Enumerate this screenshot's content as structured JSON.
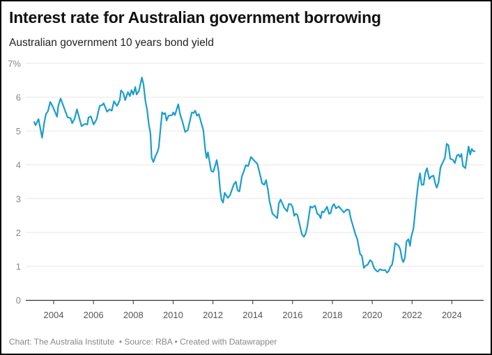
{
  "title": "Interest rate for Australian government borrowing",
  "subtitle": "Australian government 10 years bond yield",
  "footer": {
    "credit": "Chart: The Australia Institute",
    "source": "Source: RBA",
    "tool": "Created with Datawrapper",
    "separator": "•"
  },
  "colors": {
    "line": "#1a9dcc",
    "grid": "#e6e6e6",
    "axis": "#333333"
  },
  "chart_data": {
    "type": "line",
    "title": "Interest rate for Australian government borrowing",
    "subtitle": "Australian government 10 years bond yield",
    "xlabel": "",
    "ylabel": "",
    "xlim": [
      2003.0,
      2025.2
    ],
    "ylim": [
      0,
      7
    ],
    "y_ticks": [
      0,
      1,
      2,
      3,
      4,
      5,
      6,
      7
    ],
    "y_tick_labels": [
      "0",
      "1",
      "2",
      "3",
      "4",
      "5",
      "6",
      "7%"
    ],
    "x_ticks": [
      2004,
      2006,
      2008,
      2010,
      2012,
      2014,
      2016,
      2018,
      2020,
      2022,
      2024
    ],
    "x_tick_labels": [
      "2004",
      "2006",
      "2008",
      "2010",
      "2012",
      "2014",
      "2016",
      "2018",
      "2020",
      "2022",
      "2024"
    ],
    "grid": "horizontal",
    "series": [
      {
        "x": [
          2003.01,
          2003.09,
          2003.24,
          2003.42,
          2003.53,
          2003.62,
          2003.71,
          2003.83,
          2003.94,
          2004.17,
          2004.23,
          2004.35,
          2004.7,
          2004.85,
          2004.93,
          2005.05,
          2005.17,
          2005.4,
          2005.57,
          2005.69,
          2005.75,
          2005.87,
          2006.01,
          2006.16,
          2006.31,
          2006.45,
          2006.51,
          2006.68,
          2006.8,
          2006.92,
          2007.03,
          2007.18,
          2007.32,
          2007.38,
          2007.5,
          2007.59,
          2007.73,
          2007.83,
          2007.91,
          2008.0,
          2008.1,
          2008.17,
          2008.28,
          2008.43,
          2008.51,
          2008.61,
          2008.69,
          2008.78,
          2008.86,
          2008.92,
          2009.01,
          2009.11,
          2009.21,
          2009.28,
          2009.36,
          2009.45,
          2009.52,
          2009.6,
          2009.67,
          2009.77,
          2009.95,
          2010.01,
          2010.09,
          2010.26,
          2010.36,
          2010.44,
          2010.61,
          2010.74,
          2010.88,
          2010.94,
          2011.03,
          2011.11,
          2011.2,
          2011.29,
          2011.52,
          2011.61,
          2011.68,
          2011.75,
          2011.91,
          2012.02,
          2012.19,
          2012.28,
          2012.36,
          2012.43,
          2012.51,
          2012.59,
          2012.75,
          2012.86,
          2013.04,
          2013.15,
          2013.24,
          2013.33,
          2013.45,
          2013.54,
          2013.65,
          2013.77,
          2013.91,
          2014.06,
          2014.23,
          2014.35,
          2014.47,
          2014.58,
          2014.67,
          2014.76,
          2014.84,
          2014.99,
          2015.11,
          2015.23,
          2015.31,
          2015.4,
          2015.58,
          2015.73,
          2015.81,
          2015.93,
          2016.01,
          2016.08,
          2016.16,
          2016.24,
          2016.47,
          2016.57,
          2016.66,
          2016.74,
          2016.89,
          2016.98,
          2017.13,
          2017.24,
          2017.33,
          2017.41,
          2017.48,
          2017.56,
          2017.73,
          2017.83,
          2017.91,
          2017.99,
          2018.08,
          2018.18,
          2018.32,
          2018.43,
          2018.57,
          2018.73,
          2018.84,
          2018.92,
          2019.16,
          2019.25,
          2019.39,
          2019.48,
          2019.58,
          2019.66,
          2019.78,
          2019.89,
          2019.99,
          2020.09,
          2020.21,
          2020.28,
          2020.39,
          2020.51,
          2020.65,
          2020.74,
          2020.83,
          2020.91,
          2021.0,
          2021.06,
          2021.15,
          2021.33,
          2021.41,
          2021.49,
          2021.56,
          2021.64,
          2021.72,
          2021.82,
          2021.9,
          2021.96,
          2022.07,
          2022.23,
          2022.31,
          2022.4,
          2022.48,
          2022.58,
          2022.66,
          2022.75,
          2022.87,
          2022.96,
          2023.08,
          2023.16,
          2023.24,
          2023.33,
          2023.43,
          2023.51,
          2023.65,
          2023.74,
          2023.83,
          2023.92,
          2024.06,
          2024.15,
          2024.25,
          2024.33,
          2024.41,
          2024.48,
          2024.56,
          2024.68,
          2024.77,
          2024.84,
          2024.92,
          2025.0,
          2025.08,
          2025.18
        ],
        "y": [
          5.28,
          5.17,
          5.35,
          4.8,
          5.26,
          5.51,
          5.58,
          5.86,
          5.74,
          5.42,
          5.74,
          5.96,
          5.4,
          5.38,
          5.23,
          5.36,
          5.64,
          5.14,
          5.21,
          5.19,
          5.4,
          5.43,
          5.19,
          5.35,
          5.74,
          5.77,
          5.82,
          5.57,
          5.64,
          5.6,
          5.88,
          5.74,
          5.91,
          6.2,
          6.12,
          5.91,
          6.15,
          6.03,
          6.21,
          6.08,
          6.3,
          6.08,
          6.18,
          6.58,
          6.38,
          5.88,
          5.64,
          5.19,
          4.92,
          4.21,
          4.08,
          4.25,
          4.37,
          4.51,
          5.02,
          5.55,
          5.5,
          5.53,
          5.31,
          5.45,
          5.47,
          5.55,
          5.47,
          5.79,
          5.47,
          5.33,
          4.97,
          5.03,
          5.4,
          5.55,
          5.53,
          5.6,
          5.45,
          5.5,
          5.02,
          4.47,
          4.2,
          4.37,
          3.82,
          3.79,
          4.14,
          3.82,
          3.27,
          2.97,
          2.88,
          3.17,
          3.02,
          3.1,
          3.41,
          3.5,
          3.24,
          3.21,
          3.65,
          3.79,
          3.99,
          3.96,
          4.23,
          4.13,
          4.03,
          3.75,
          3.45,
          3.41,
          3.55,
          3.27,
          2.93,
          2.55,
          2.49,
          2.42,
          2.86,
          2.97,
          2.73,
          2.62,
          2.84,
          2.83,
          2.73,
          2.49,
          2.55,
          2.52,
          1.94,
          1.87,
          1.97,
          2.18,
          2.77,
          2.73,
          2.79,
          2.55,
          2.52,
          2.42,
          2.62,
          2.59,
          2.76,
          2.55,
          2.57,
          2.76,
          2.84,
          2.71,
          2.77,
          2.69,
          2.59,
          2.68,
          2.66,
          2.42,
          1.94,
          1.8,
          1.36,
          1.31,
          0.95,
          1.01,
          1.05,
          1.18,
          1.13,
          0.95,
          0.86,
          0.84,
          0.91,
          0.88,
          0.89,
          0.81,
          0.86,
          0.98,
          1.05,
          1.25,
          1.68,
          1.6,
          1.49,
          1.22,
          1.12,
          1.25,
          1.73,
          1.8,
          1.6,
          1.87,
          2.11,
          3.03,
          3.45,
          3.75,
          3.41,
          3.41,
          3.75,
          3.9,
          3.58,
          3.65,
          3.68,
          3.46,
          3.32,
          3.48,
          3.92,
          4.03,
          4.2,
          4.62,
          4.58,
          4.18,
          4.14,
          4.05,
          4.27,
          4.3,
          4.23,
          4.32,
          3.96,
          3.9,
          4.27,
          4.54,
          4.3,
          4.47,
          4.4,
          4.4
        ]
      }
    ]
  }
}
